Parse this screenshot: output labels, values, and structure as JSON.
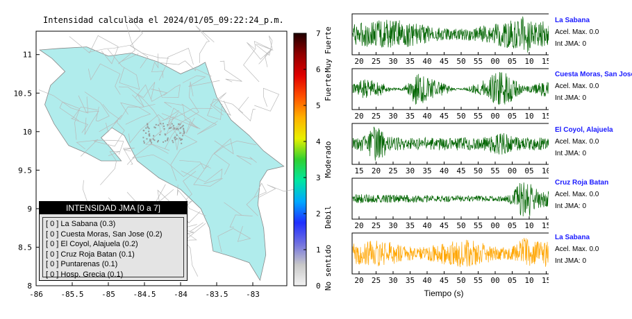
{
  "map": {
    "title": "Intensidad calculada el 2024/01/05_09:22:24_p.m.",
    "x_ticks": [
      "-86",
      "-85.5",
      "-85",
      "-84.5",
      "-84",
      "-83.5",
      "-83"
    ],
    "y_ticks": [
      "11",
      "10.5",
      "10",
      "9.5",
      "9",
      "8.5",
      "8"
    ],
    "land_color": "#b0ecec",
    "legend": {
      "title": "INTENSIDAD JMA [0 a 7]",
      "items": [
        "[ 0 ]  La Sabana (0.3)",
        "[ 0 ]  Cuesta Moras, San Jose (0.2)",
        "[ 0 ]  El Coyol, Alajuela (0.2)",
        "[ 0 ]  Cruz Roja Batan (0.1)",
        "[ 0 ]  Puntarenas (0.1)",
        "[ 0 ]  Hosp. Grecia (0.1)"
      ]
    }
  },
  "colorbar": {
    "ticks": [
      "0",
      "1",
      "2",
      "3",
      "4",
      "5",
      "6",
      "7"
    ],
    "categories": [
      "No sentido",
      "Debil",
      "Moderado",
      "Fuerte",
      "Muy Fuerte"
    ]
  },
  "traces": {
    "xlabel": "Tiempo (s)",
    "stations": [
      {
        "name": "La Sabana",
        "acel": "Acel. Max. 0.0",
        "int": "Int JMA: 0",
        "color": "#006400",
        "ticks": [
          "20",
          "25",
          "30",
          "35",
          "40",
          "45",
          "50",
          "55",
          "00",
          "05",
          "10",
          "15"
        ]
      },
      {
        "name": "Cuesta Moras, San Jose",
        "acel": "Acel. Max. 0.0",
        "int": "Int JMA: 0",
        "color": "#006400",
        "ticks": [
          "20",
          "25",
          "30",
          "35",
          "40",
          "45",
          "50",
          "55",
          "00",
          "05",
          "10",
          "15"
        ]
      },
      {
        "name": "El Coyol, Alajuela",
        "acel": "Acel. Max. 0.0",
        "int": "Int JMA: 0",
        "color": "#006400",
        "ticks": [
          "15",
          "20",
          "25",
          "30",
          "35",
          "40",
          "45",
          "50",
          "55",
          "00",
          "05",
          "10"
        ]
      },
      {
        "name": "Cruz Roja Batan",
        "acel": "Acel. Max. 0.0",
        "int": "Int JMA: 0",
        "color": "#006400",
        "ticks": [
          "20",
          "25",
          "30",
          "35",
          "40",
          "45",
          "50",
          "55",
          "00",
          "05",
          "10",
          "15"
        ]
      },
      {
        "name": "La Sabana",
        "acel": "Acel. Max. 0.0",
        "int": "Int JMA: 0",
        "color": "#ffa500",
        "ticks": [
          "20",
          "25",
          "30",
          "35",
          "40",
          "45",
          "50",
          "55",
          "00",
          "05",
          "10",
          "15"
        ]
      }
    ]
  },
  "chart_data": [
    {
      "type": "heatmap",
      "title": "Intensidad calculada el 2024/01/05_09:22:24_p.m.",
      "xlim": [
        -86,
        -82.5
      ],
      "ylim": [
        8,
        11.3
      ],
      "colorbar_range": [
        0,
        7
      ],
      "colorbar_labels": [
        "No sentido",
        "Debil",
        "Moderado",
        "Fuerte",
        "Muy Fuerte"
      ],
      "stations": [
        {
          "name": "La Sabana",
          "intensity": 0.3
        },
        {
          "name": "Cuesta Moras, San Jose",
          "intensity": 0.2
        },
        {
          "name": "El Coyol, Alajuela",
          "intensity": 0.2
        },
        {
          "name": "Cruz Roja Batan",
          "intensity": 0.1
        },
        {
          "name": "Puntarenas",
          "intensity": 0.1
        },
        {
          "name": "Hosp. Grecia",
          "intensity": 0.1
        }
      ]
    },
    {
      "type": "line",
      "xlabel": "Tiempo (s)",
      "series": [
        {
          "name": "La Sabana",
          "acel_max": 0.0,
          "int_jma": 0
        },
        {
          "name": "Cuesta Moras, San Jose",
          "acel_max": 0.0,
          "int_jma": 0
        },
        {
          "name": "El Coyol, Alajuela",
          "acel_max": 0.0,
          "int_jma": 0
        },
        {
          "name": "Cruz Roja Batan",
          "acel_max": 0.0,
          "int_jma": 0
        },
        {
          "name": "La Sabana",
          "acel_max": 0.0,
          "int_jma": 0
        }
      ]
    }
  ]
}
